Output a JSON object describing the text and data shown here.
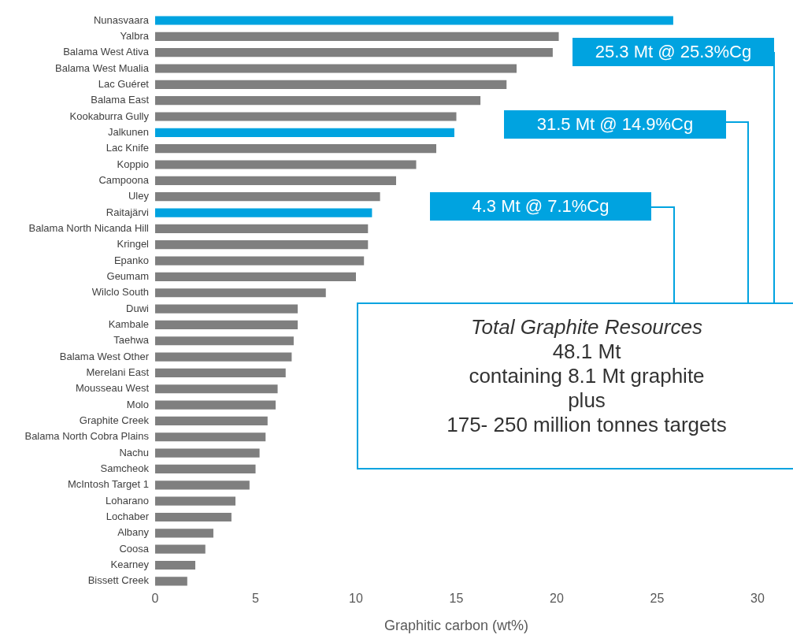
{
  "chart_data": {
    "type": "bar",
    "orientation": "horizontal",
    "xlabel": "Graphitic carbon (wt%)",
    "categories": [
      "Nunasvaara",
      "Yalbra",
      "Balama West Ativa",
      "Balama West Mualia",
      "Lac Guéret",
      "Balama East",
      "Kookaburra Gully",
      "Jalkunen",
      "Lac Knife",
      "Koppio",
      "Campoona",
      "Uley",
      "Raitajärvi",
      "Balama North Nicanda Hill",
      "Kringel",
      "Epanko",
      "Geumam",
      "Wilclo South",
      "Duwi",
      "Kambale",
      "Taehwa",
      "Balama West Other",
      "Merelani East",
      "Mousseau West",
      "Molo",
      "Graphite Creek",
      "Balama North Cobra Plains",
      "Nachu",
      "Samcheok",
      "McIntosh Target 1",
      "Loharano",
      "Lochaber",
      "Albany",
      "Coosa",
      "Kearney",
      "Bissett Creek"
    ],
    "values": [
      25.8,
      20.1,
      19.8,
      18.0,
      17.5,
      16.2,
      15.0,
      14.9,
      14.0,
      13.0,
      12.0,
      11.2,
      10.8,
      10.6,
      10.6,
      10.4,
      10.0,
      8.5,
      7.1,
      7.1,
      6.9,
      6.8,
      6.5,
      6.1,
      6.0,
      5.6,
      5.5,
      5.2,
      5.0,
      4.7,
      4.0,
      3.8,
      2.9,
      2.5,
      2.0,
      1.6
    ],
    "colors": [
      "#00a3e0",
      "#7f7f7f",
      "#7f7f7f",
      "#7f7f7f",
      "#7f7f7f",
      "#7f7f7f",
      "#7f7f7f",
      "#00a3e0",
      "#7f7f7f",
      "#7f7f7f",
      "#7f7f7f",
      "#7f7f7f",
      "#00a3e0",
      "#7f7f7f",
      "#7f7f7f",
      "#7f7f7f",
      "#7f7f7f",
      "#7f7f7f",
      "#7f7f7f",
      "#7f7f7f",
      "#7f7f7f",
      "#7f7f7f",
      "#7f7f7f",
      "#7f7f7f",
      "#7f7f7f",
      "#7f7f7f",
      "#7f7f7f",
      "#7f7f7f",
      "#7f7f7f",
      "#7f7f7f",
      "#7f7f7f",
      "#7f7f7f",
      "#7f7f7f",
      "#7f7f7f",
      "#7f7f7f",
      "#7f7f7f"
    ],
    "xlim": [
      0,
      30
    ],
    "xticks": [
      0,
      5,
      10,
      15,
      20,
      25,
      30
    ],
    "grid": false,
    "legend": false,
    "annotations": [
      "25.3 Mt @ 25.3%Cg",
      "31.5 Mt @ 14.9%Cg",
      "4.3 Mt @ 7.1%Cg",
      "Total Graphite Resources\n48.1 Mt\ncontaining 8.1 Mt graphite\nplus\n175- 250 million tonnes targets"
    ]
  }
}
